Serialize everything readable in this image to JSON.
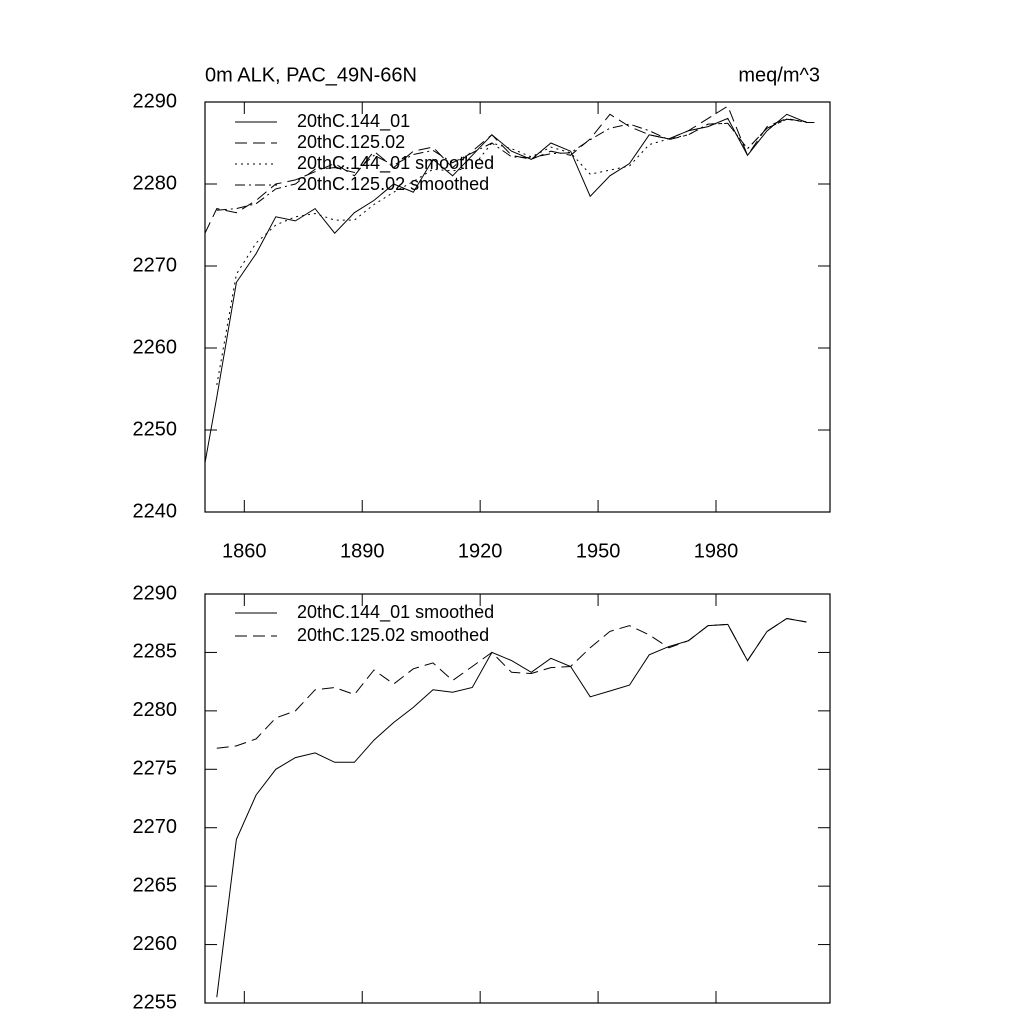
{
  "chart_data": [
    {
      "type": "line",
      "title": "0m ALK, PAC_49N-66N",
      "units": "meq/m^3",
      "x": [
        1850,
        1853,
        1858,
        1863,
        1868,
        1873,
        1878,
        1883,
        1888,
        1893,
        1898,
        1903,
        1908,
        1913,
        1918,
        1923,
        1928,
        1933,
        1938,
        1943,
        1948,
        1953,
        1958,
        1963,
        1968,
        1973,
        1978,
        1983,
        1988,
        1993,
        1998,
        2003,
        2005
      ],
      "xlim": [
        1850,
        2009
      ],
      "xticks": [
        1860,
        1890,
        1920,
        1950,
        1980
      ],
      "xtick_labels": true,
      "ylim": [
        2240,
        2290
      ],
      "yticks": [
        2240,
        2250,
        2260,
        2270,
        2280,
        2290
      ],
      "series": [
        {
          "name": "20thC.144_01",
          "color": "#000000",
          "line_style": "solid",
          "values": [
            2246,
            2254,
            2268,
            2271.5,
            2276,
            2275.5,
            2277,
            2274,
            2276.5,
            2278,
            2280,
            2279,
            2283,
            2281,
            2283.5,
            2286,
            2284,
            2283,
            2285,
            2284,
            2278.5,
            2281,
            2282.5,
            2286,
            2285.5,
            2286.5,
            2287,
            2288,
            2283.5,
            2286.5,
            2288.5,
            2287.5,
            2287.5
          ]
        },
        {
          "name": "20thC.125.02",
          "color": "#000000",
          "line_style": "dashed",
          "values": [
            2274,
            2277,
            2276.5,
            2278,
            2280,
            2280.5,
            2281.5,
            2282.5,
            2281,
            2284,
            2282,
            2284,
            2284.5,
            2282,
            2284,
            2286,
            2283.5,
            2283,
            2284,
            2283.5,
            2285.5,
            2288.5,
            2287,
            2286,
            2285.5,
            2286.5,
            2288,
            2289.5,
            2283.5,
            2287,
            2288,
            2287.5,
            2287.5
          ]
        },
        {
          "name": "20thC.144_01 smoothed",
          "color": "#000000",
          "line_style": "dotted",
          "values": [
            null,
            2255.5,
            2269,
            2272.8,
            2275,
            2276,
            2276.4,
            2275.6,
            2275.6,
            2277.5,
            2279,
            2280.3,
            2281.8,
            2281.6,
            2282,
            2285,
            2284.3,
            2283.3,
            2284.5,
            2283.8,
            2281.2,
            2281.7,
            2282.2,
            2284.8,
            2285.5,
            2286,
            2287.3,
            2287.4,
            2284.3,
            2286.8,
            2287.9,
            2287.6,
            null
          ]
        },
        {
          "name": "20thC.125.02 smoothed",
          "color": "#000000",
          "line_style": "dashdot",
          "values": [
            null,
            2276.8,
            2277,
            2277.6,
            2279.4,
            2280,
            2281.8,
            2282,
            2281.4,
            2283.5,
            2282.3,
            2283.6,
            2284.1,
            2282.6,
            2283.8,
            2285,
            2283.3,
            2283.2,
            2283.7,
            2283.8,
            2285.4,
            2286.8,
            2287.3,
            2286.5,
            2285.4,
            2286,
            2287.3,
            2287.4,
            2284.3,
            2286.8,
            2287.9,
            2287.6,
            null
          ]
        }
      ]
    },
    {
      "type": "line",
      "x": [
        1853,
        1858,
        1863,
        1868,
        1873,
        1878,
        1883,
        1888,
        1893,
        1898,
        1903,
        1908,
        1913,
        1918,
        1923,
        1928,
        1933,
        1938,
        1943,
        1948,
        1953,
        1958,
        1963,
        1968,
        1973,
        1978,
        1983,
        1988,
        1993,
        1998,
        2003
      ],
      "xlim": [
        1850,
        2009
      ],
      "xticks": [
        1860,
        1890,
        1920,
        1950,
        1980
      ],
      "xtick_labels": false,
      "ylim": [
        2255,
        2290
      ],
      "yticks": [
        2255,
        2260,
        2265,
        2270,
        2275,
        2280,
        2285,
        2290
      ],
      "series": [
        {
          "name": "20thC.144_01 smoothed",
          "color": "#000000",
          "line_style": "solid",
          "values": [
            2255.5,
            2269,
            2272.8,
            2275,
            2276,
            2276.4,
            2275.6,
            2275.6,
            2277.5,
            2279,
            2280.3,
            2281.8,
            2281.6,
            2282,
            2285,
            2284.3,
            2283.3,
            2284.5,
            2283.8,
            2281.2,
            2281.7,
            2282.2,
            2284.8,
            2285.5,
            2286,
            2287.3,
            2287.4,
            2284.3,
            2286.8,
            2287.9,
            2287.6
          ]
        },
        {
          "name": "20thC.125.02 smoothed",
          "color": "#000000",
          "line_style": "dashed",
          "values": [
            2276.8,
            2277,
            2277.6,
            2279.4,
            2280,
            2281.8,
            2282,
            2281.4,
            2283.5,
            2282.3,
            2283.6,
            2284.1,
            2282.6,
            2283.8,
            2285,
            2283.3,
            2283.2,
            2283.7,
            2283.8,
            2285.4,
            2286.8,
            2287.3,
            2286.5,
            2285.4,
            2286,
            2287.3,
            2287.4,
            2284.3,
            2286.8,
            2287.9,
            2287.6
          ]
        }
      ]
    }
  ]
}
